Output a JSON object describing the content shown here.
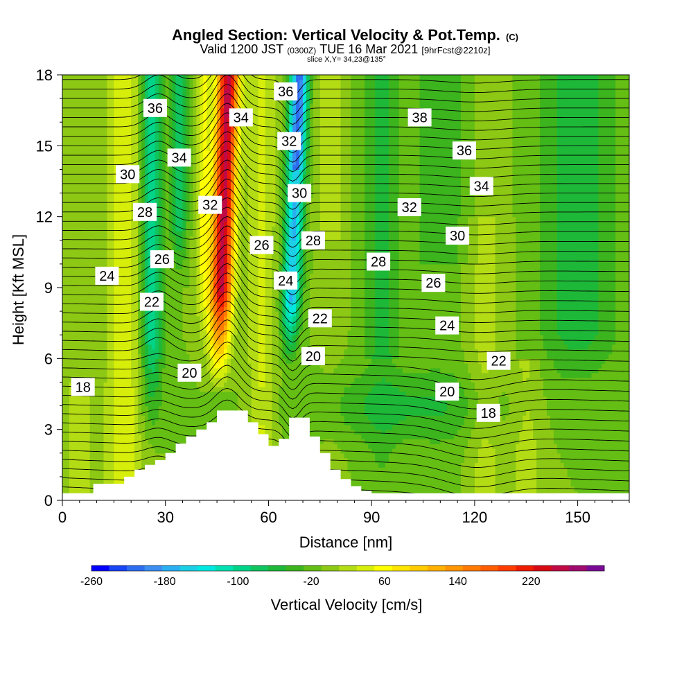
{
  "chart_data": {
    "type": "heatmap",
    "title": "Angled Section: Vertical Velocity & Pot.Temp.",
    "title_mark": "(C)",
    "subtitle_parts": [
      "Valid 1200 JST",
      "(0300Z)",
      "TUE 16 Mar 2021",
      "[9hrFcst@2210z]"
    ],
    "slice_text": "slice X,Y= 34,23@135°",
    "xlabel": "Distance [nm]",
    "ylabel": "Height [Kft MSL]",
    "xlim": [
      0,
      165
    ],
    "ylim": [
      0,
      18
    ],
    "xticks": [
      0,
      30,
      60,
      90,
      120,
      150
    ],
    "yticks": [
      0,
      3,
      6,
      9,
      12,
      15,
      18
    ],
    "grid": false,
    "colorbar": {
      "label": "Vertical Velocity [cm/s]",
      "tick_labels": [
        "-260",
        "-180",
        "-100",
        "-20",
        "60",
        "140",
        "220"
      ],
      "tick_values": [
        -260,
        -180,
        -100,
        -20,
        60,
        140,
        220
      ],
      "range": [
        -260,
        300
      ],
      "bin_width": 20,
      "colors": [
        "#0000ff",
        "#1845f5",
        "#2e6df0",
        "#3d8ef2",
        "#2aaff2",
        "#1ccfe6",
        "#00e9e0",
        "#00e0b0",
        "#00d488",
        "#10c460",
        "#1eb838",
        "#3cb41e",
        "#64be14",
        "#8cc814",
        "#b4dc14",
        "#d7ee0a",
        "#ffff00",
        "#ffe600",
        "#ffcc00",
        "#ffb000",
        "#ff9600",
        "#ff7a00",
        "#ff5c00",
        "#ff3c00",
        "#ee1c00",
        "#d70a14",
        "#c00a46",
        "#a00a6e",
        "#7a0a96"
      ]
    },
    "velocity_features": [
      {
        "name": "updraft",
        "x_center": 48,
        "max": 270,
        "tilt": "westward with height"
      },
      {
        "name": "downdraft",
        "x_center": 67,
        "min": -190
      },
      {
        "name": "downdraft",
        "x_center": 26,
        "min": -100
      }
    ],
    "terrain_profile": {
      "x": [
        0,
        9,
        18,
        21,
        24,
        27,
        30,
        33,
        36,
        39,
        42,
        45,
        51,
        54,
        57,
        60,
        63,
        66,
        69,
        72,
        75,
        78,
        81,
        84,
        87,
        90,
        165
      ],
      "height": [
        0.3,
        0.7,
        1.0,
        1.3,
        1.5,
        1.7,
        2.0,
        2.4,
        2.7,
        3.0,
        3.3,
        3.8,
        3.8,
        3.3,
        2.8,
        2.3,
        2.6,
        3.5,
        3.5,
        2.7,
        2.0,
        1.3,
        0.9,
        0.6,
        0.4,
        0.3,
        0.3
      ]
    },
    "potential_temperature_labels": [
      {
        "text": "36",
        "x": 27,
        "y": 16.6
      },
      {
        "text": "34",
        "x": 34,
        "y": 14.5
      },
      {
        "text": "30",
        "x": 19,
        "y": 13.8
      },
      {
        "text": "28",
        "x": 24,
        "y": 12.2
      },
      {
        "text": "26",
        "x": 29,
        "y": 10.2
      },
      {
        "text": "24",
        "x": 13,
        "y": 9.5
      },
      {
        "text": "22",
        "x": 26,
        "y": 8.4
      },
      {
        "text": "20",
        "x": 37,
        "y": 5.4
      },
      {
        "text": "18",
        "x": 6,
        "y": 4.8
      },
      {
        "text": "34",
        "x": 52,
        "y": 16.2
      },
      {
        "text": "32",
        "x": 43,
        "y": 12.5
      },
      {
        "text": "26",
        "x": 58,
        "y": 10.8
      },
      {
        "text": "36",
        "x": 65,
        "y": 17.3
      },
      {
        "text": "32",
        "x": 66,
        "y": 15.2
      },
      {
        "text": "30",
        "x": 69,
        "y": 13.0
      },
      {
        "text": "28",
        "x": 73,
        "y": 11.0
      },
      {
        "text": "24",
        "x": 65,
        "y": 9.3
      },
      {
        "text": "22",
        "x": 75,
        "y": 7.7
      },
      {
        "text": "20",
        "x": 73,
        "y": 6.1
      },
      {
        "text": "38",
        "x": 104,
        "y": 16.2
      },
      {
        "text": "36",
        "x": 117,
        "y": 14.8
      },
      {
        "text": "34",
        "x": 122,
        "y": 13.3
      },
      {
        "text": "32",
        "x": 101,
        "y": 12.4
      },
      {
        "text": "30",
        "x": 115,
        "y": 11.2
      },
      {
        "text": "28",
        "x": 92,
        "y": 10.1
      },
      {
        "text": "26",
        "x": 108,
        "y": 9.2
      },
      {
        "text": "24",
        "x": 112,
        "y": 7.4
      },
      {
        "text": "22",
        "x": 127,
        "y": 5.9
      },
      {
        "text": "20",
        "x": 112,
        "y": 4.6
      },
      {
        "text": "18",
        "x": 124,
        "y": 3.7
      }
    ]
  }
}
